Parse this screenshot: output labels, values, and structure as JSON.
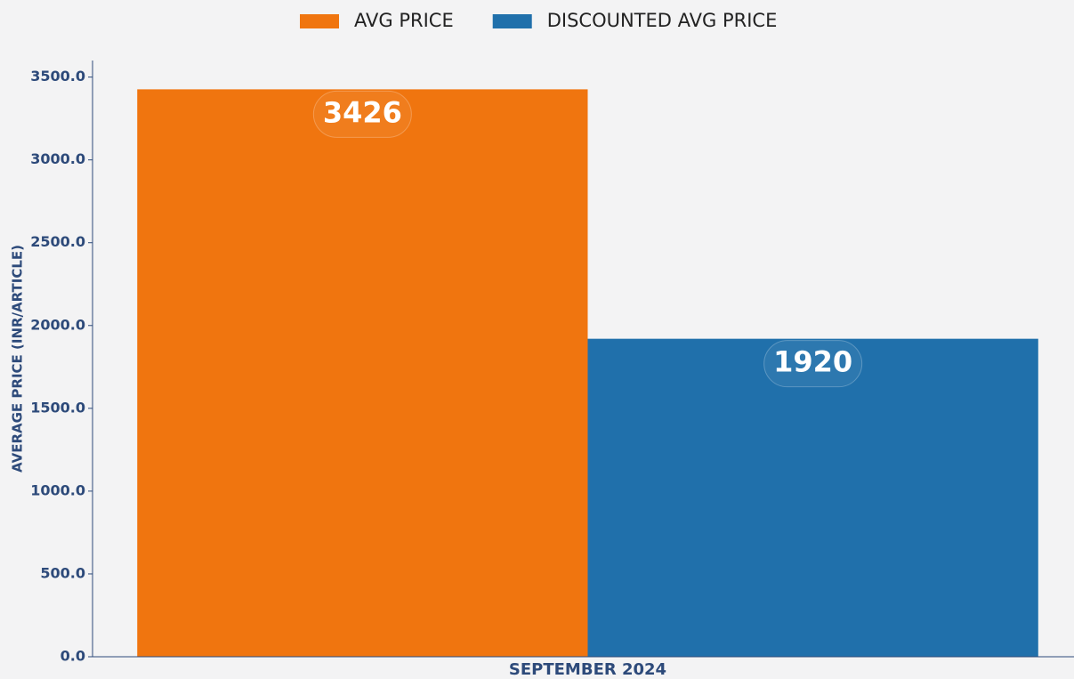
{
  "chart_data": {
    "type": "bar",
    "categories": [
      "SEPTEMBER 2024"
    ],
    "series": [
      {
        "name": "AVG PRICE",
        "color": "#f0750f",
        "values": [
          3426
        ]
      },
      {
        "name": "DISCOUNTED AVG PRICE",
        "color": "#2070ab",
        "values": [
          1920
        ]
      }
    ],
    "y_label": "AVERAGE PRICE (INR/ARTICLE)",
    "ylim": [
      0,
      3600
    ],
    "yticks": [
      {
        "value": 0,
        "label": "0.0"
      },
      {
        "value": 500,
        "label": "500.0"
      },
      {
        "value": 1000,
        "label": "1000.0"
      },
      {
        "value": 1500,
        "label": "1500.0"
      },
      {
        "value": 2000,
        "label": "2000.0"
      },
      {
        "value": 2500,
        "label": "2500.0"
      },
      {
        "value": 3000,
        "label": "3000.0"
      },
      {
        "value": 3500,
        "label": "3500.0"
      }
    ],
    "legend": "top"
  }
}
